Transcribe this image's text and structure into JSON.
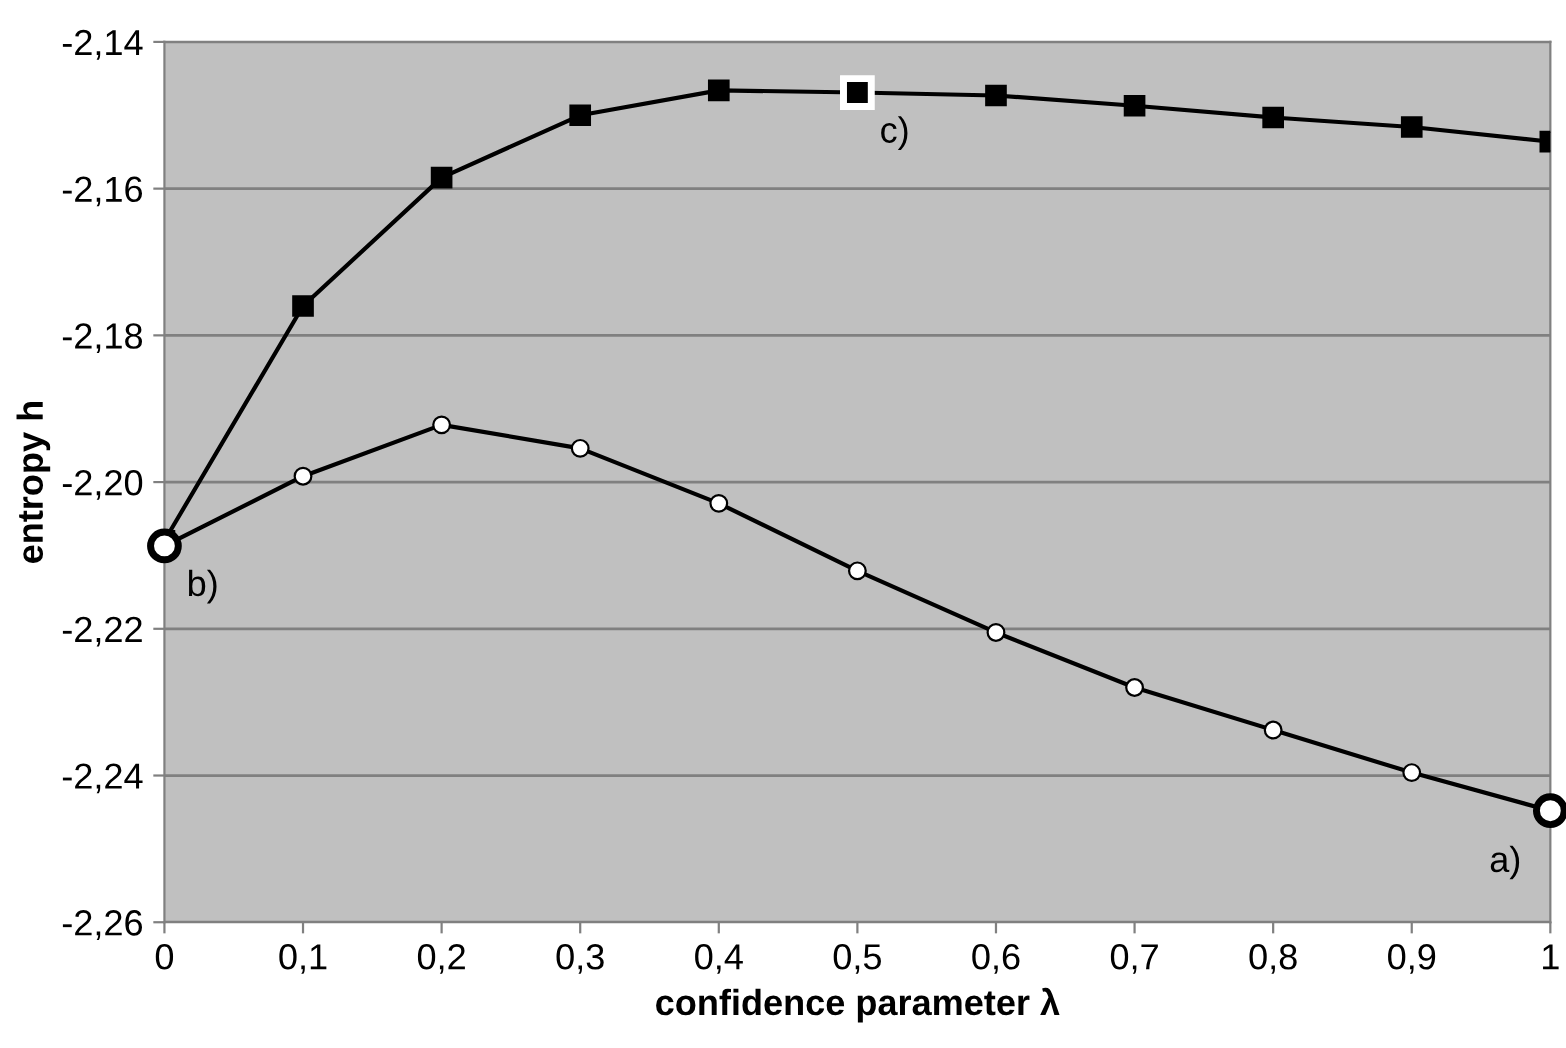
{
  "chart_data": {
    "type": "line",
    "xlabel": "confidence parameter λ",
    "ylabel": "entropy h",
    "x": [
      0,
      0.1,
      0.2,
      0.3,
      0.4,
      0.5,
      0.6,
      0.7,
      0.8,
      0.9,
      1
    ],
    "series": [
      {
        "color": "#000000",
        "marker": "square",
        "values": [
          -2.208,
          -2.176,
          -2.1585,
          -2.15,
          -2.1466,
          -2.1469,
          -2.1473,
          -2.1487,
          -2.1503,
          -2.1516,
          -2.1536
        ]
      },
      {
        "color": "#000000",
        "marker": "circle",
        "values": [
          -2.2087,
          -2.1992,
          -2.1922,
          -2.1954,
          -2.2029,
          -2.2121,
          -2.2205,
          -2.228,
          -2.2338,
          -2.2396,
          -2.2448
        ]
      }
    ],
    "annotations": [
      {
        "text": "a)",
        "x": 1,
        "y": -2.2448
      },
      {
        "text": "b)",
        "x": 0,
        "y": -2.2087
      },
      {
        "text": "c)",
        "x": 0.5,
        "y": -2.1469
      }
    ],
    "xlim": [
      0,
      1
    ],
    "xticks": [
      {
        "value": 0,
        "label": "0"
      },
      {
        "value": 0.1,
        "label": "0,1"
      },
      {
        "value": 0.2,
        "label": "0,2"
      },
      {
        "value": 0.3,
        "label": "0,3"
      },
      {
        "value": 0.4,
        "label": "0,4"
      },
      {
        "value": 0.5,
        "label": "0,5"
      },
      {
        "value": 0.6,
        "label": "0,6"
      },
      {
        "value": 0.7,
        "label": "0,7"
      },
      {
        "value": 0.8,
        "label": "0,8"
      },
      {
        "value": 0.9,
        "label": "0,9"
      },
      {
        "value": 1,
        "label": "1"
      }
    ],
    "ylim": [
      -2.26,
      -2.14
    ],
    "yticks": [
      {
        "value": -2.26,
        "label": "-2,26"
      },
      {
        "value": -2.24,
        "label": "-2,24"
      },
      {
        "value": -2.22,
        "label": "-2,22"
      },
      {
        "value": -2.2,
        "label": "-2,20"
      },
      {
        "value": -2.18,
        "label": "-2,18"
      },
      {
        "value": -2.16,
        "label": "-2,16"
      },
      {
        "value": -2.14,
        "label": "-2,14"
      }
    ],
    "grid": "y",
    "line_style": "solid",
    "legend": false
  }
}
